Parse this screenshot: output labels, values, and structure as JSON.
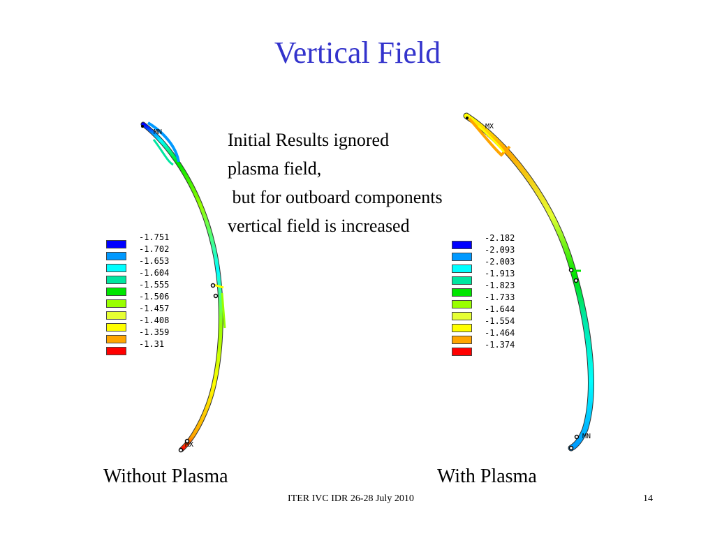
{
  "title": "Vertical Field",
  "body_text": [
    "Initial Results ignored",
    "plasma field,",
    " but for outboard components",
    "vertical field is increased"
  ],
  "captions": {
    "left": "Without Plasma",
    "right": "With Plasma"
  },
  "footer": {
    "center": "ITER IVC IDR 26-28 July 2010",
    "page": "14"
  },
  "legend_left": {
    "values": [
      "-1.751",
      "-1.702",
      "-1.653",
      "-1.604",
      "-1.555",
      "-1.506",
      "-1.457",
      "-1.408",
      "-1.359",
      "-1.31"
    ],
    "colors": [
      "#0000ff",
      "#0099ff",
      "#00ffff",
      "#00e6a0",
      "#00e600",
      "#99ff00",
      "#e6ff33",
      "#ffff00",
      "#ffa500",
      "#ff0000"
    ]
  },
  "legend_right": {
    "values": [
      "-2.182",
      "-2.093",
      "-2.003",
      "-1.913",
      "-1.823",
      "-1.733",
      "-1.644",
      "-1.554",
      "-1.464",
      "-1.374"
    ],
    "colors": [
      "#0000ff",
      "#0099ff",
      "#00ffff",
      "#00e6a0",
      "#00e600",
      "#99ff00",
      "#e6ff33",
      "#ffff00",
      "#ffa500",
      "#ff0000"
    ]
  },
  "plot_left": {
    "min_label": "MN",
    "max_label": "MX"
  },
  "plot_right": {
    "min_label": "MN",
    "max_label": "MX"
  }
}
